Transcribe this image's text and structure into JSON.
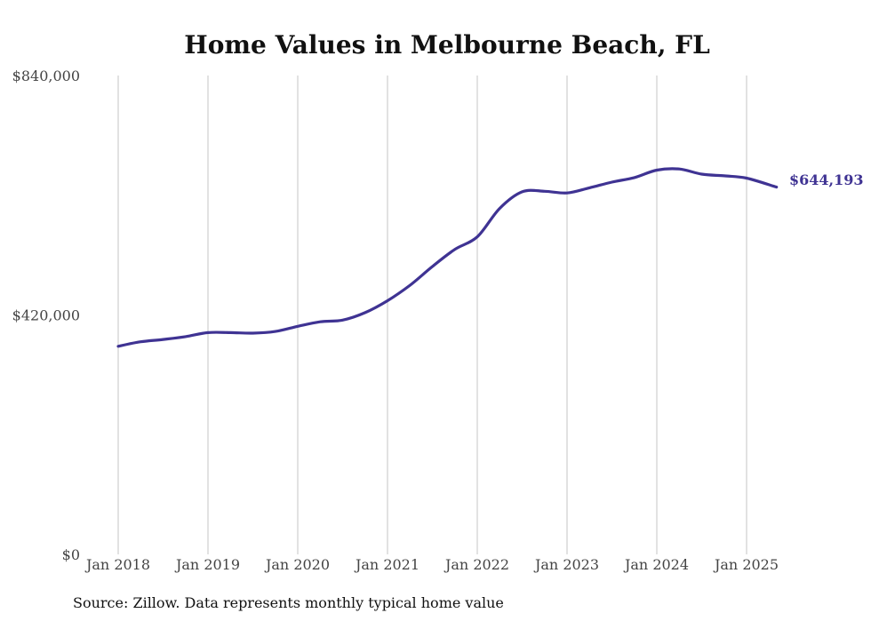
{
  "chart_data": {
    "type": "line",
    "title": "Home Values in Melbourne Beach, FL",
    "xlabel": "",
    "ylabel": "",
    "ylim": [
      0,
      840000
    ],
    "yticks": [
      0,
      420000,
      840000
    ],
    "ytick_labels": [
      "$0",
      "$420,000",
      "$840,000"
    ],
    "xticks": [
      "2018-01",
      "2019-01",
      "2020-01",
      "2021-01",
      "2022-01",
      "2023-01",
      "2024-01",
      "2025-01"
    ],
    "xtick_labels": [
      "Jan 2018",
      "Jan 2019",
      "Jan 2020",
      "Jan 2021",
      "Jan 2022",
      "Jan 2023",
      "Jan 2024",
      "Jan 2025"
    ],
    "x_range": [
      "2018-01",
      "2025-05"
    ],
    "grid": "vertical",
    "line_color": "#3f3393",
    "series": [
      {
        "points": [
          [
            "2018-01",
            365000
          ],
          [
            "2018-04",
            373000
          ],
          [
            "2018-07",
            377000
          ],
          [
            "2018-10",
            382000
          ],
          [
            "2019-01",
            389000
          ],
          [
            "2019-04",
            389000
          ],
          [
            "2019-07",
            388000
          ],
          [
            "2019-10",
            391000
          ],
          [
            "2020-01",
            400000
          ],
          [
            "2020-04",
            408000
          ],
          [
            "2020-07",
            411000
          ],
          [
            "2020-10",
            424000
          ],
          [
            "2021-01",
            445000
          ],
          [
            "2021-04",
            472000
          ],
          [
            "2021-07",
            505000
          ],
          [
            "2021-10",
            535000
          ],
          [
            "2022-01",
            557000
          ],
          [
            "2022-04",
            607000
          ],
          [
            "2022-07",
            636000
          ],
          [
            "2022-10",
            637000
          ],
          [
            "2023-01",
            634000
          ],
          [
            "2023-04",
            643000
          ],
          [
            "2023-07",
            653000
          ],
          [
            "2023-10",
            661000
          ],
          [
            "2024-01",
            674000
          ],
          [
            "2024-04",
            676000
          ],
          [
            "2024-07",
            667000
          ],
          [
            "2024-10",
            664000
          ],
          [
            "2025-01",
            660000
          ],
          [
            "2025-05",
            644193
          ]
        ]
      }
    ],
    "end_label": "$644,193"
  },
  "source_note": "Source: Zillow. Data represents monthly typical home value"
}
